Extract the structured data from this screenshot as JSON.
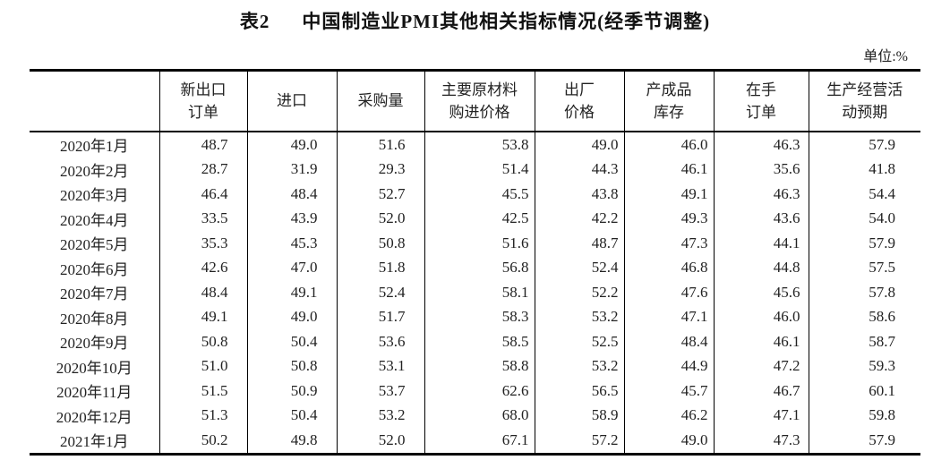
{
  "title": {
    "tag": "表2",
    "text": "中国制造业PMI其他相关指标情况(经季节调整)"
  },
  "unit_label": "单位:%",
  "colors": {
    "text": "#222222",
    "border": "#000000",
    "background": "#ffffff"
  },
  "table": {
    "corner_label": "",
    "columns": [
      {
        "label": "新出口订单",
        "lines": [
          "新出口",
          "订单"
        ]
      },
      {
        "label": "进口",
        "lines": [
          "进口"
        ]
      },
      {
        "label": "采购量",
        "lines": [
          "采购量"
        ]
      },
      {
        "label": "主要原材料购进价格",
        "lines": [
          "主要原材料",
          "购进价格"
        ]
      },
      {
        "label": "出厂价格",
        "lines": [
          "出厂",
          "价格"
        ]
      },
      {
        "label": "产成品库存",
        "lines": [
          "产成品",
          "库存"
        ]
      },
      {
        "label": "在手订单",
        "lines": [
          "在手",
          "订单"
        ]
      },
      {
        "label": "生产经营活动预期",
        "lines": [
          "生产经营活",
          "动预期"
        ]
      }
    ],
    "rows": [
      {
        "label": "2020年1月",
        "values": [
          "48.7",
          "49.0",
          "51.6",
          "53.8",
          "49.0",
          "46.0",
          "46.3",
          "57.9"
        ]
      },
      {
        "label": "2020年2月",
        "values": [
          "28.7",
          "31.9",
          "29.3",
          "51.4",
          "44.3",
          "46.1",
          "35.6",
          "41.8"
        ]
      },
      {
        "label": "2020年3月",
        "values": [
          "46.4",
          "48.4",
          "52.7",
          "45.5",
          "43.8",
          "49.1",
          "46.3",
          "54.4"
        ]
      },
      {
        "label": "2020年4月",
        "values": [
          "33.5",
          "43.9",
          "52.0",
          "42.5",
          "42.2",
          "49.3",
          "43.6",
          "54.0"
        ]
      },
      {
        "label": "2020年5月",
        "values": [
          "35.3",
          "45.3",
          "50.8",
          "51.6",
          "48.7",
          "47.3",
          "44.1",
          "57.9"
        ]
      },
      {
        "label": "2020年6月",
        "values": [
          "42.6",
          "47.0",
          "51.8",
          "56.8",
          "52.4",
          "46.8",
          "44.8",
          "57.5"
        ]
      },
      {
        "label": "2020年7月",
        "values": [
          "48.4",
          "49.1",
          "52.4",
          "58.1",
          "52.2",
          "47.6",
          "45.6",
          "57.8"
        ]
      },
      {
        "label": "2020年8月",
        "values": [
          "49.1",
          "49.0",
          "51.7",
          "58.3",
          "53.2",
          "47.1",
          "46.0",
          "58.6"
        ]
      },
      {
        "label": "2020年9月",
        "values": [
          "50.8",
          "50.4",
          "53.6",
          "58.5",
          "52.5",
          "48.4",
          "46.1",
          "58.7"
        ]
      },
      {
        "label": "2020年10月",
        "values": [
          "51.0",
          "50.8",
          "53.1",
          "58.8",
          "53.2",
          "44.9",
          "47.2",
          "59.3"
        ]
      },
      {
        "label": "2020年11月",
        "values": [
          "51.5",
          "50.9",
          "53.7",
          "62.6",
          "56.5",
          "45.7",
          "46.7",
          "60.1"
        ]
      },
      {
        "label": "2020年12月",
        "values": [
          "51.3",
          "50.4",
          "53.2",
          "68.0",
          "58.9",
          "46.2",
          "47.1",
          "59.8"
        ]
      },
      {
        "label": "2021年1月",
        "values": [
          "50.2",
          "49.8",
          "52.0",
          "67.1",
          "57.2",
          "49.0",
          "47.3",
          "57.9"
        ]
      }
    ]
  }
}
